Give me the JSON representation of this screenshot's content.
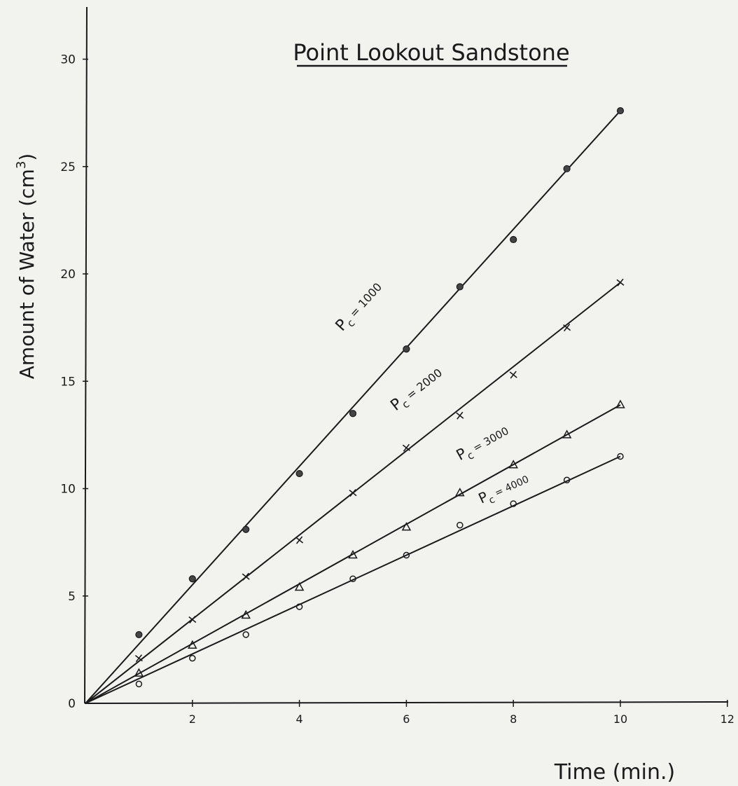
{
  "chart_data": {
    "type": "line",
    "title": "Point Lookout Sandstone",
    "xlabel": "Time (min.)",
    "ylabel": "Amount of Water (cm",
    "ylabel_superscript": "3",
    "ylabel_close": ")",
    "xlim": [
      0,
      12
    ],
    "ylim": [
      0,
      32
    ],
    "x_ticks": [
      0,
      2,
      4,
      6,
      8,
      10,
      12
    ],
    "x_tick_labels": [
      "2",
      "4",
      "6",
      "8",
      "10",
      "12"
    ],
    "y_ticks": [
      0,
      5,
      10,
      15,
      20,
      25,
      30
    ],
    "y_tick_labels": [
      "0",
      "5",
      "10",
      "15",
      "20",
      "25",
      "30"
    ],
    "grid": false,
    "series": [
      {
        "name": "Pc = 1000",
        "label_prefix": "P",
        "label_sub": "c",
        "label_suffix": " = 1000",
        "marker": "filled-circle",
        "x": [
          1,
          2,
          3,
          4,
          5,
          6,
          7,
          8,
          9,
          10
        ],
        "y": [
          3.2,
          5.8,
          8.1,
          10.7,
          13.5,
          16.5,
          19.4,
          21.6,
          24.9,
          27.6
        ],
        "fit": [
          [
            0,
            0
          ],
          [
            10,
            27.6
          ]
        ]
      },
      {
        "name": "Pc = 2000",
        "label_prefix": "P",
        "label_sub": "c",
        "label_suffix": " = 2000",
        "marker": "cross",
        "x": [
          1,
          2,
          3,
          4,
          5,
          6,
          7,
          8,
          9,
          10
        ],
        "y": [
          2.1,
          3.9,
          5.9,
          7.6,
          9.8,
          11.9,
          13.4,
          15.3,
          17.5,
          19.6
        ],
        "fit": [
          [
            0,
            0
          ],
          [
            10,
            19.6
          ]
        ]
      },
      {
        "name": "Pc = 3000",
        "label_prefix": "P",
        "label_sub": "c",
        "label_suffix": " = 3000",
        "marker": "triangle",
        "x": [
          1,
          2,
          3,
          4,
          5,
          6,
          7,
          8,
          9,
          10
        ],
        "y": [
          1.4,
          2.7,
          4.1,
          5.4,
          6.9,
          8.2,
          9.8,
          11.1,
          12.5,
          13.9
        ],
        "fit": [
          [
            0,
            0
          ],
          [
            10,
            13.9
          ]
        ]
      },
      {
        "name": "Pc = 4000",
        "label_prefix": "P",
        "label_sub": "c",
        "label_suffix": " = 4000",
        "marker": "open-circle",
        "x": [
          1,
          2,
          3,
          4,
          5,
          6,
          7,
          8,
          9,
          10
        ],
        "y": [
          0.9,
          2.1,
          3.2,
          4.5,
          5.8,
          6.9,
          8.3,
          9.3,
          10.4,
          11.5
        ],
        "fit": [
          [
            0,
            0
          ],
          [
            10,
            11.5
          ]
        ]
      }
    ]
  }
}
